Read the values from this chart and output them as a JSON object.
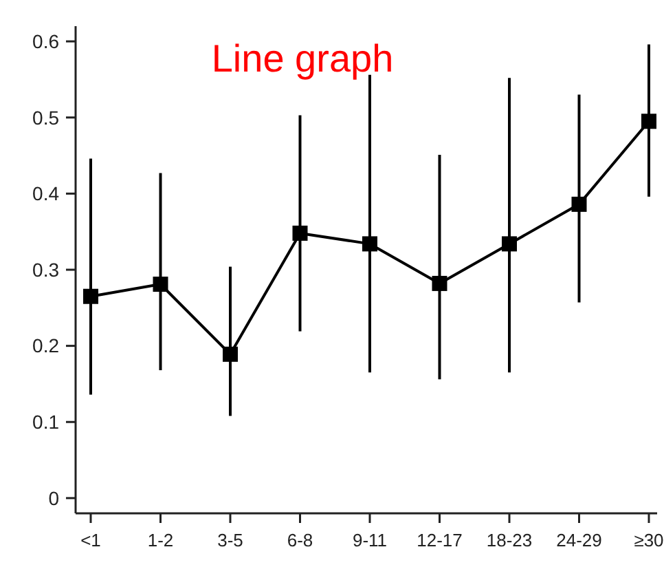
{
  "chart_data": {
    "type": "line",
    "title": "Line graph",
    "categories": [
      "<1",
      "1-2",
      "3-5",
      "6-8",
      "9-11",
      "12-17",
      "18-23",
      "24-29",
      "≥30"
    ],
    "series": [
      {
        "color": "#000000",
        "values": [
          0.265,
          0.281,
          0.189,
          0.348,
          0.334,
          0.282,
          0.334,
          0.386,
          0.495
        ],
        "errors": [
          [
            0.136,
            0.446
          ],
          [
            0.168,
            0.427
          ],
          [
            0.108,
            0.304
          ],
          [
            0.219,
            0.503
          ],
          [
            0.165,
            0.556
          ],
          [
            0.156,
            0.451
          ],
          [
            0.165,
            0.552
          ],
          [
            0.257,
            0.53
          ],
          [
            0.396,
            0.596
          ]
        ]
      }
    ],
    "ylim": [
      -0.02,
      0.62
    ],
    "yticks": [
      0,
      0.1,
      0.2,
      0.3,
      0.4,
      0.5,
      0.6
    ],
    "marker": "square",
    "line_style": "solid"
  }
}
